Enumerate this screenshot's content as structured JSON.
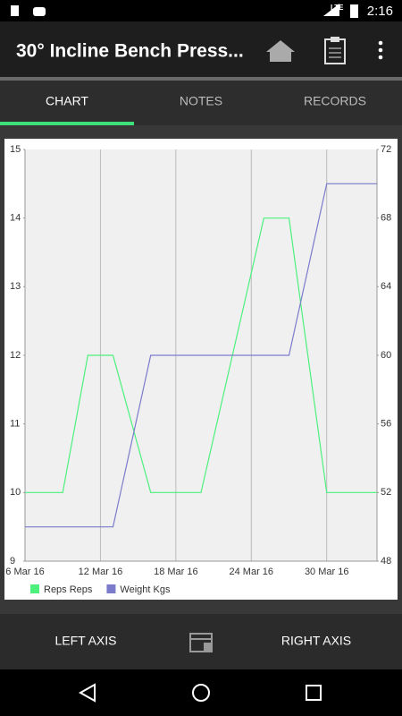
{
  "status_bar": {
    "network": "LTE",
    "time": "2:16"
  },
  "app_bar": {
    "title": "30° Incline Bench Press..."
  },
  "tabs": [
    "CHART",
    "NOTES",
    "RECORDS"
  ],
  "chart_data": {
    "type": "line",
    "x": [
      "2016-03-06",
      "2016-03-09",
      "2016-03-11",
      "2016-03-13",
      "2016-03-16",
      "2016-03-20",
      "2016-03-25",
      "2016-03-27",
      "2016-03-30",
      "2016-04-03"
    ],
    "xlim": [
      "2016-03-06",
      "2016-04-03"
    ],
    "xticks": [
      {
        "value": "2016-03-06",
        "label": "6 Mar 16"
      },
      {
        "value": "2016-03-12",
        "label": "12 Mar 16"
      },
      {
        "value": "2016-03-18",
        "label": "18 Mar 16"
      },
      {
        "value": "2016-03-24",
        "label": "24 Mar 16"
      },
      {
        "value": "2016-03-30",
        "label": "30 Mar 16"
      }
    ],
    "xgrid": true,
    "ylim": [
      9,
      15
    ],
    "yticks": [
      9,
      10,
      11,
      12,
      13,
      14,
      15
    ],
    "y2lim": [
      48,
      72
    ],
    "y2ticks": [
      48,
      52,
      56,
      60,
      64,
      68,
      72
    ],
    "series": [
      {
        "name": "Reps Reps",
        "color": "#4cf07c",
        "values": [
          10,
          10,
          12,
          12,
          10,
          10,
          14,
          14,
          10,
          10
        ]
      },
      {
        "name": "Weight Kgs",
        "color": "#7b7bcc",
        "axis": "y2",
        "values": [
          50,
          50,
          50,
          50,
          60,
          60,
          60,
          60,
          70,
          70
        ]
      }
    ]
  },
  "bottom_bar": {
    "left": "LEFT AXIS",
    "right": "RIGHT AXIS"
  }
}
